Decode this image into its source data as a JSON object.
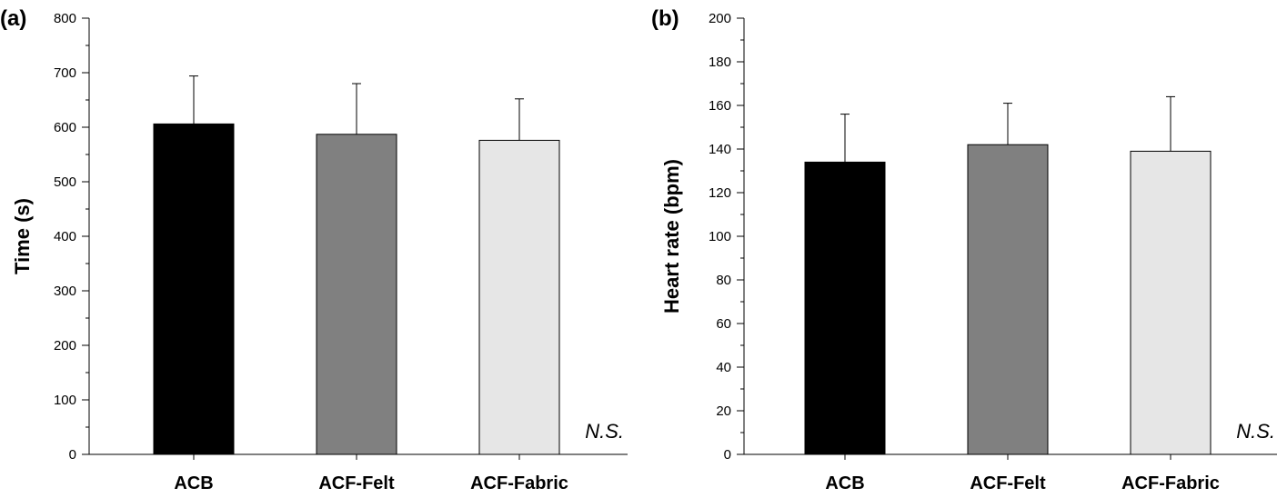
{
  "chart_data": [
    {
      "type": "bar",
      "panel_label": "(a)",
      "ylabel": "Time (s)",
      "categories": [
        "ACB",
        "ACF-Felt",
        "ACF-Fabric"
      ],
      "values": [
        606,
        587,
        576
      ],
      "errors": [
        88,
        93,
        76
      ],
      "colors": [
        "#000000",
        "#808080",
        "#e6e6e6"
      ],
      "ylim": [
        0,
        800
      ],
      "yticks": [
        0,
        100,
        200,
        300,
        400,
        500,
        600,
        700,
        800
      ],
      "minor_step": 50,
      "annotation": "N.S."
    },
    {
      "type": "bar",
      "panel_label": "(b)",
      "ylabel": "Heart rate (bpm)",
      "categories": [
        "ACB",
        "ACF-Felt",
        "ACF-Fabric"
      ],
      "values": [
        134,
        142,
        139
      ],
      "errors": [
        22,
        19,
        25
      ],
      "colors": [
        "#000000",
        "#808080",
        "#e6e6e6"
      ],
      "ylim": [
        0,
        200
      ],
      "yticks": [
        0,
        20,
        40,
        60,
        80,
        100,
        120,
        140,
        160,
        180,
        200
      ],
      "minor_step": 10,
      "annotation": "N.S."
    }
  ]
}
